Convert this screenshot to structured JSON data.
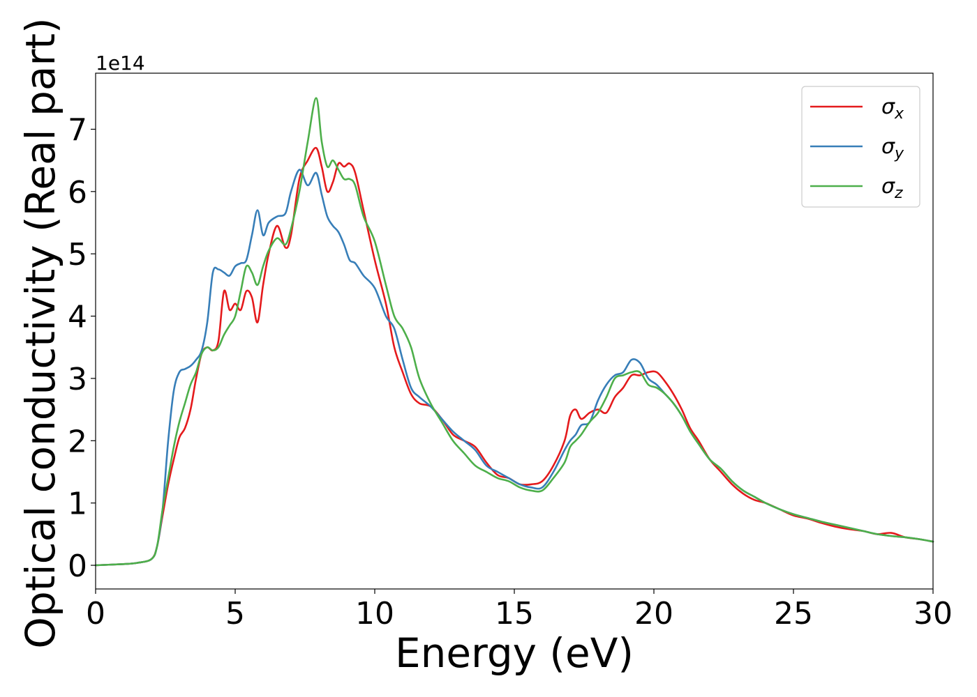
{
  "chart_data": {
    "type": "line",
    "xlabel": "Energy (eV)",
    "ylabel": "Optical conductivity (Real part)",
    "offset_label": "1e14",
    "xlim": [
      0,
      30
    ],
    "ylim": [
      -0.38,
      7.9
    ],
    "xticks": [
      0,
      5,
      10,
      15,
      20,
      25,
      30
    ],
    "yticks": [
      0,
      1,
      2,
      3,
      4,
      5,
      6,
      7
    ],
    "legend_position": "top-right",
    "series": [
      {
        "name": "σx",
        "symbol": "σ",
        "subscript": "x",
        "color": "#e41a1c",
        "x": [
          0,
          1,
          1.5,
          2,
          2.2,
          2.4,
          2.6,
          2.8,
          3.0,
          3.2,
          3.4,
          3.6,
          3.8,
          4.0,
          4.2,
          4.4,
          4.6,
          4.8,
          5.0,
          5.2,
          5.4,
          5.6,
          5.8,
          6.0,
          6.2,
          6.5,
          6.8,
          7.0,
          7.3,
          7.6,
          7.9,
          8.1,
          8.3,
          8.5,
          8.7,
          8.9,
          9.1,
          9.3,
          9.6,
          10.0,
          10.4,
          10.7,
          11.0,
          11.3,
          11.6,
          12.0,
          12.4,
          12.8,
          13.2,
          13.6,
          14.0,
          14.4,
          14.8,
          15.2,
          15.6,
          16.0,
          16.4,
          16.8,
          17.0,
          17.2,
          17.4,
          17.7,
          18.0,
          18.3,
          18.6,
          18.9,
          19.2,
          19.5,
          19.8,
          20.1,
          20.4,
          20.7,
          21.0,
          21.3,
          21.6,
          22.0,
          22.4,
          22.8,
          23.2,
          23.6,
          24.0,
          24.5,
          25.0,
          25.5,
          26.0,
          26.5,
          27.0,
          27.5,
          28.0,
          28.5,
          29.0,
          29.5,
          30.0
        ],
        "values": [
          0,
          0.02,
          0.04,
          0.1,
          0.3,
          0.8,
          1.3,
          1.7,
          2.05,
          2.2,
          2.5,
          3.0,
          3.4,
          3.5,
          3.45,
          3.6,
          4.4,
          4.1,
          4.2,
          4.1,
          4.4,
          4.3,
          3.9,
          4.5,
          5.0,
          5.45,
          5.1,
          5.3,
          6.2,
          6.5,
          6.7,
          6.4,
          6.0,
          6.15,
          6.45,
          6.4,
          6.45,
          6.3,
          5.7,
          4.9,
          4.2,
          3.5,
          3.1,
          2.75,
          2.6,
          2.55,
          2.35,
          2.1,
          2.0,
          1.9,
          1.65,
          1.45,
          1.4,
          1.3,
          1.3,
          1.35,
          1.6,
          2.0,
          2.4,
          2.5,
          2.35,
          2.45,
          2.5,
          2.45,
          2.7,
          2.85,
          3.05,
          3.05,
          3.1,
          3.1,
          2.95,
          2.75,
          2.5,
          2.2,
          2.0,
          1.7,
          1.5,
          1.3,
          1.15,
          1.05,
          1.0,
          0.9,
          0.8,
          0.75,
          0.68,
          0.62,
          0.58,
          0.55,
          0.5,
          0.52,
          0.45,
          0.42,
          0.38
        ]
      },
      {
        "name": "σy",
        "symbol": "σ",
        "subscript": "y",
        "color": "#377eb8",
        "x": [
          0,
          1,
          1.5,
          2,
          2.2,
          2.4,
          2.6,
          2.8,
          3.0,
          3.2,
          3.4,
          3.6,
          3.8,
          4.0,
          4.2,
          4.4,
          4.6,
          4.8,
          5.0,
          5.2,
          5.4,
          5.6,
          5.8,
          6.0,
          6.2,
          6.5,
          6.8,
          7.0,
          7.3,
          7.6,
          7.9,
          8.1,
          8.3,
          8.5,
          8.7,
          8.9,
          9.1,
          9.3,
          9.6,
          10.0,
          10.4,
          10.7,
          11.0,
          11.3,
          11.6,
          12.0,
          12.4,
          12.8,
          13.2,
          13.6,
          14.0,
          14.4,
          14.8,
          15.2,
          15.6,
          16.0,
          16.4,
          16.8,
          17.0,
          17.2,
          17.4,
          17.7,
          18.0,
          18.3,
          18.6,
          18.9,
          19.2,
          19.5,
          19.8,
          20.1,
          20.4,
          20.7,
          21.0,
          21.3,
          21.6,
          22.0,
          22.4,
          22.8,
          23.2,
          23.6,
          24.0,
          24.5,
          25.0,
          25.5,
          26.0,
          26.5,
          27.0,
          27.5,
          28.0,
          28.5,
          29.0,
          29.5,
          30.0
        ],
        "values": [
          0,
          0.02,
          0.04,
          0.1,
          0.3,
          0.9,
          2.0,
          2.8,
          3.1,
          3.15,
          3.2,
          3.3,
          3.45,
          3.9,
          4.7,
          4.75,
          4.7,
          4.65,
          4.8,
          4.85,
          4.9,
          5.3,
          5.7,
          5.3,
          5.5,
          5.6,
          5.65,
          6.0,
          6.35,
          6.1,
          6.3,
          5.95,
          5.6,
          5.45,
          5.35,
          5.15,
          4.9,
          4.85,
          4.65,
          4.45,
          4.0,
          3.8,
          3.3,
          2.85,
          2.7,
          2.55,
          2.35,
          2.15,
          2.0,
          1.85,
          1.6,
          1.5,
          1.4,
          1.3,
          1.25,
          1.25,
          1.5,
          1.85,
          2.0,
          2.1,
          2.25,
          2.3,
          2.65,
          2.9,
          3.05,
          3.1,
          3.3,
          3.25,
          3.0,
          2.9,
          2.75,
          2.6,
          2.4,
          2.15,
          1.95,
          1.7,
          1.55,
          1.35,
          1.2,
          1.1,
          1.0,
          0.9,
          0.82,
          0.76,
          0.7,
          0.65,
          0.6,
          0.55,
          0.5,
          0.47,
          0.45,
          0.42,
          0.38
        ]
      },
      {
        "name": "σz",
        "symbol": "σ",
        "subscript": "z",
        "color": "#4daf4a",
        "x": [
          0,
          1,
          1.5,
          2,
          2.2,
          2.4,
          2.6,
          2.8,
          3.0,
          3.2,
          3.4,
          3.6,
          3.8,
          4.0,
          4.2,
          4.4,
          4.6,
          4.8,
          5.0,
          5.2,
          5.4,
          5.6,
          5.8,
          6.0,
          6.2,
          6.5,
          6.8,
          7.0,
          7.3,
          7.6,
          7.9,
          8.1,
          8.3,
          8.5,
          8.7,
          8.9,
          9.1,
          9.3,
          9.6,
          10.0,
          10.4,
          10.7,
          11.0,
          11.3,
          11.6,
          12.0,
          12.4,
          12.8,
          13.2,
          13.6,
          14.0,
          14.4,
          14.8,
          15.2,
          15.6,
          16.0,
          16.4,
          16.8,
          17.0,
          17.2,
          17.4,
          17.7,
          18.0,
          18.3,
          18.6,
          18.9,
          19.2,
          19.5,
          19.8,
          20.1,
          20.4,
          20.7,
          21.0,
          21.3,
          21.6,
          22.0,
          22.4,
          22.8,
          23.2,
          23.6,
          24.0,
          24.5,
          25.0,
          25.5,
          26.0,
          26.5,
          27.0,
          27.5,
          28.0,
          28.5,
          29.0,
          29.5,
          30.0
        ],
        "values": [
          0,
          0.02,
          0.04,
          0.1,
          0.3,
          0.9,
          1.4,
          1.9,
          2.3,
          2.6,
          2.9,
          3.1,
          3.4,
          3.5,
          3.45,
          3.5,
          3.7,
          3.85,
          4.0,
          4.4,
          4.8,
          4.7,
          4.5,
          4.8,
          5.05,
          5.25,
          5.15,
          5.4,
          6.0,
          6.8,
          7.5,
          6.8,
          6.4,
          6.5,
          6.35,
          6.2,
          6.2,
          6.1,
          5.6,
          5.2,
          4.5,
          4.0,
          3.8,
          3.5,
          3.0,
          2.6,
          2.3,
          2.0,
          1.8,
          1.6,
          1.5,
          1.4,
          1.35,
          1.25,
          1.2,
          1.2,
          1.4,
          1.65,
          1.9,
          2.0,
          2.1,
          2.3,
          2.45,
          2.7,
          3.0,
          3.05,
          3.1,
          3.1,
          2.9,
          2.85,
          2.75,
          2.6,
          2.4,
          2.15,
          1.95,
          1.7,
          1.55,
          1.35,
          1.2,
          1.1,
          1.0,
          0.9,
          0.82,
          0.76,
          0.7,
          0.65,
          0.6,
          0.55,
          0.5,
          0.47,
          0.45,
          0.42,
          0.38
        ]
      }
    ]
  }
}
